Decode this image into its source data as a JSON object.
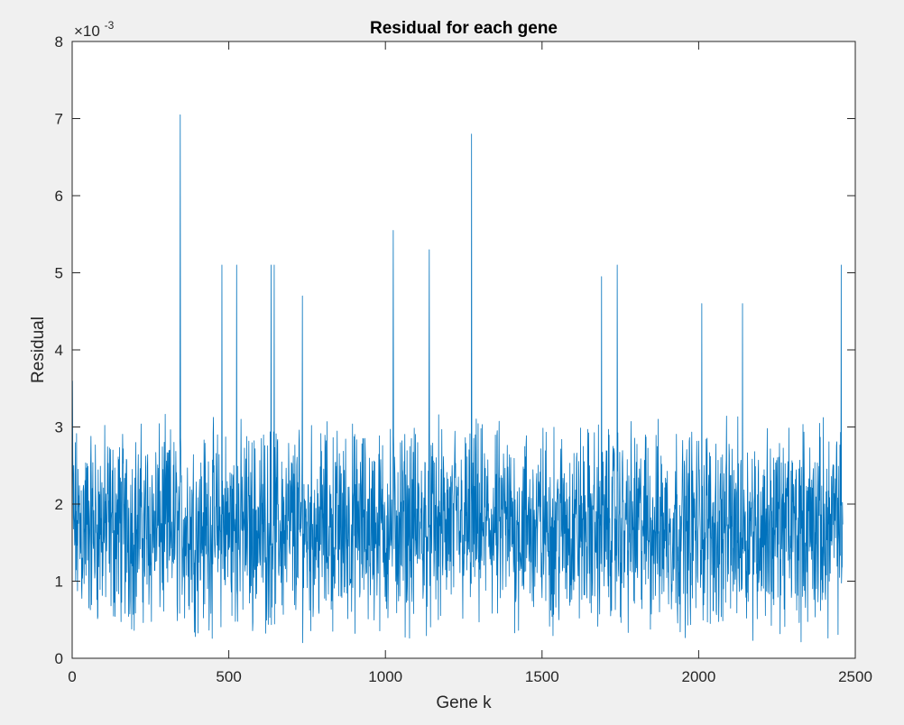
{
  "chart_data": {
    "type": "line",
    "title": "Residual for each gene",
    "xlabel": "Gene k",
    "ylabel": "Residual",
    "y_exponent_label": "×10",
    "y_exponent_power": "-3",
    "xlim": [
      0,
      2500
    ],
    "ylim": [
      0,
      0.008
    ],
    "xticks": [
      0,
      500,
      1000,
      1500,
      2000,
      2500
    ],
    "xtick_labels": [
      "0",
      "500",
      "1000",
      "1500",
      "2000",
      "2500"
    ],
    "yticks": [
      0,
      0.001,
      0.002,
      0.003,
      0.004,
      0.005,
      0.006,
      0.007,
      0.008
    ],
    "ytick_labels": [
      "0",
      "1",
      "2",
      "3",
      "4",
      "5",
      "6",
      "7",
      "8"
    ],
    "grid": false,
    "box": true,
    "series": [
      {
        "color": "#0072bd",
        "n_points": 2460,
        "x_start": 1,
        "x_step": 1,
        "notable_points": [
          {
            "x": 1,
            "y": 0.0036
          },
          {
            "x": 345,
            "y": 0.00705
          },
          {
            "x": 478,
            "y": 0.0051
          },
          {
            "x": 525,
            "y": 0.0051
          },
          {
            "x": 635,
            "y": 0.0051
          },
          {
            "x": 645,
            "y": 0.0051
          },
          {
            "x": 735,
            "y": 0.0047
          },
          {
            "x": 1025,
            "y": 0.00555
          },
          {
            "x": 1140,
            "y": 0.0053
          },
          {
            "x": 1275,
            "y": 0.0068
          },
          {
            "x": 1690,
            "y": 0.00495
          },
          {
            "x": 1740,
            "y": 0.0051
          },
          {
            "x": 2010,
            "y": 0.0046
          },
          {
            "x": 2140,
            "y": 0.0046
          },
          {
            "x": 2455,
            "y": 0.0051
          }
        ],
        "typical_range": [
          0,
          0.004
        ]
      }
    ]
  }
}
